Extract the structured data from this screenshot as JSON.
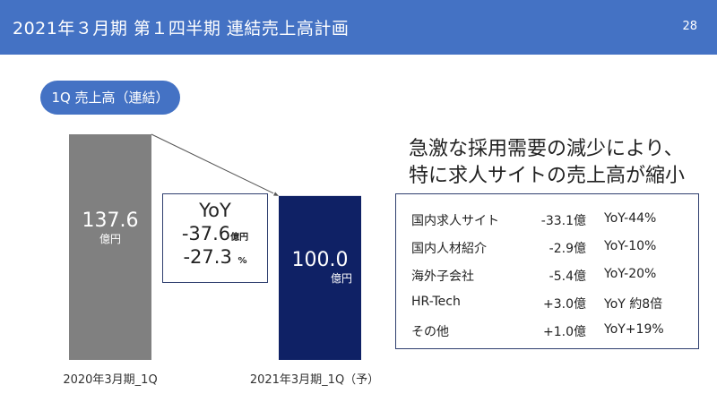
{
  "header": {
    "title": "2021年３月期 第１四半期 連結売上高計画",
    "page_number": "28"
  },
  "pill_label": "1Q 売上高（連結）",
  "headline": {
    "line1": "急激な採用需要の減少により、",
    "line2": "特に求人サイトの売上高が縮小"
  },
  "yoy_box": {
    "title": "YoY",
    "line1": "-37.6",
    "unit1": "億円",
    "line2": "-27.3",
    "unit2": "%"
  },
  "breakdown": [
    {
      "name": "国内求人サイト",
      "value": "-33.1億",
      "yoy": "YoY-44%"
    },
    {
      "name": "国内人材紹介",
      "value": "-2.9億",
      "yoy": "YoY-10%"
    },
    {
      "name": "海外子会社",
      "value": "-5.4億",
      "yoy": "YoY-20%"
    },
    {
      "name": "HR-Tech",
      "value": "+3.0億",
      "yoy": "YoY 約8倍"
    },
    {
      "name": "その他",
      "value": "+1.0億",
      "yoy": "YoY+19%"
    }
  ],
  "colors": {
    "header": "#4472c4",
    "bar_prev": "#808080",
    "bar_plan": "#0f2165",
    "box_border": "#2f3f6f"
  },
  "chart_data": {
    "type": "bar",
    "categories": [
      "2020年3月期_1Q",
      "2021年3月期_1Q（予）"
    ],
    "values": [
      137.6,
      100.0
    ],
    "value_labels": [
      "137.6",
      "100.0"
    ],
    "unit_labels": [
      "億円",
      "億円"
    ],
    "bar_colors": [
      "#808080",
      "#0f2165"
    ],
    "title": "",
    "xlabel": "",
    "ylabel": "",
    "ylim": [
      0,
      137.6
    ]
  }
}
